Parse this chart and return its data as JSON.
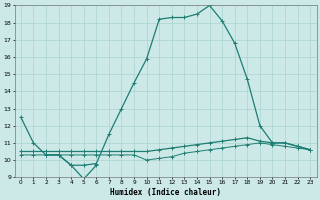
{
  "xlabel": "Humidex (Indice chaleur)",
  "xlim": [
    -0.5,
    23.5
  ],
  "ylim": [
    9,
    19
  ],
  "yticks": [
    9,
    10,
    11,
    12,
    13,
    14,
    15,
    16,
    17,
    18,
    19
  ],
  "xticks": [
    0,
    1,
    2,
    3,
    4,
    5,
    6,
    7,
    8,
    9,
    10,
    11,
    12,
    13,
    14,
    15,
    16,
    17,
    18,
    19,
    20,
    21,
    22,
    23
  ],
  "bg_color": "#cce9e8",
  "line_color": "#1e7d72",
  "grid_color": "#aad4d0",
  "lines": [
    {
      "x": [
        0,
        1,
        2,
        3,
        4,
        5,
        6,
        7,
        8,
        9,
        10,
        11,
        12,
        13,
        14,
        15,
        16,
        17,
        18,
        19,
        20,
        21,
        22,
        23
      ],
      "y": [
        12.5,
        11.0,
        10.3,
        10.3,
        9.7,
        9.7,
        9.8,
        11.5,
        13.0,
        14.5,
        15.9,
        18.2,
        18.3,
        18.3,
        18.5,
        19.0,
        18.1,
        16.8,
        14.7,
        12.0,
        11.0,
        11.0,
        10.8,
        10.6
      ],
      "marker": true,
      "lw": 0.9
    },
    {
      "x": [
        2,
        3,
        4,
        5,
        6
      ],
      "y": [
        10.3,
        10.3,
        9.7,
        8.9,
        9.7
      ],
      "marker": true,
      "lw": 0.9
    },
    {
      "x": [
        0,
        1,
        2,
        3,
        4,
        5,
        6,
        7,
        8,
        9,
        10,
        11,
        12,
        13,
        14,
        15,
        16,
        17,
        18,
        19,
        20,
        21,
        22,
        23
      ],
      "y": [
        10.5,
        10.5,
        10.5,
        10.5,
        10.5,
        10.5,
        10.5,
        10.5,
        10.5,
        10.5,
        10.5,
        10.6,
        10.7,
        10.8,
        10.9,
        11.0,
        11.1,
        11.2,
        11.3,
        11.1,
        11.0,
        11.0,
        10.8,
        10.6
      ],
      "marker": true,
      "lw": 0.9
    },
    {
      "x": [
        0,
        1,
        2,
        3,
        4,
        5,
        6,
        7,
        8,
        9,
        10,
        11,
        12,
        13,
        14,
        15,
        16,
        17,
        18,
        19,
        20,
        21,
        22,
        23
      ],
      "y": [
        10.3,
        10.3,
        10.3,
        10.3,
        10.3,
        10.3,
        10.3,
        10.3,
        10.3,
        10.3,
        10.0,
        10.1,
        10.2,
        10.4,
        10.5,
        10.6,
        10.7,
        10.8,
        10.9,
        11.0,
        10.9,
        10.8,
        10.7,
        10.6
      ],
      "marker": true,
      "lw": 0.7
    }
  ]
}
